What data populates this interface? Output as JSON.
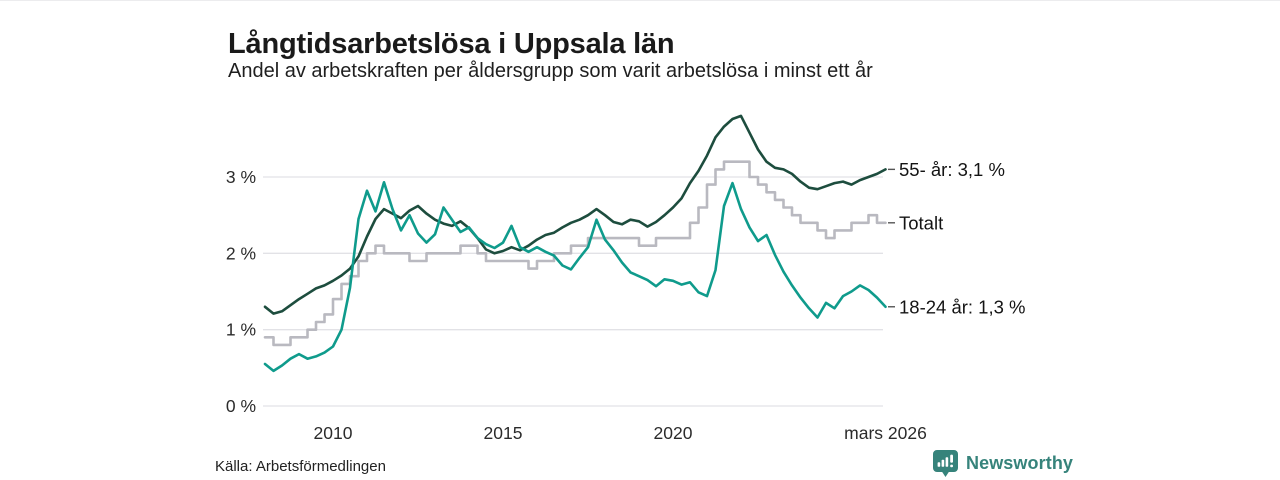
{
  "header": {
    "title": "Långtidsarbetslösa i Uppsala län",
    "subtitle": "Andel av arbetskraften per åldersgrupp som varit arbetslösa i minst ett år"
  },
  "footer": {
    "source": "Källa: Arbetsförmedlingen",
    "brand_name": "Newsworthy",
    "brand_icon": "newsworthy-bar-chart-bubble-icon",
    "brand_color": "#36837b"
  },
  "colors": {
    "age55_line": "#1d4d3e",
    "total_line": "#b9b9c0",
    "age1824_line": "#0f9b8c",
    "gridline": "#e2e2e6",
    "tick_text": "#2b2b2b",
    "legend_text": "#141414",
    "leader_dash": "#555555"
  },
  "chart_data": {
    "type": "line",
    "title": "Långtidsarbetslösa i Uppsala län",
    "subtitle": "Andel av arbetskraften per åldersgrupp som varit arbetslösa i minst ett år",
    "xlabel": "",
    "ylabel": "",
    "grid": "horizontal",
    "legend_position": "right-of-line-ends",
    "xrange": [
      2008.0,
      2026.25
    ],
    "yrange": [
      0,
      4.0
    ],
    "yticks": [
      {
        "value": 0,
        "label": "0 %"
      },
      {
        "value": 1,
        "label": "1 %"
      },
      {
        "value": 2,
        "label": "2 %"
      },
      {
        "value": 3,
        "label": "3 %"
      }
    ],
    "xticks": [
      {
        "value": 2010,
        "label": "2010"
      },
      {
        "value": 2015,
        "label": "2015"
      },
      {
        "value": 2020,
        "label": "2020"
      },
      {
        "value": 2026.25,
        "label": "mars 2026"
      }
    ],
    "x": [
      2008.0,
      2008.25,
      2008.5,
      2008.75,
      2009.0,
      2009.25,
      2009.5,
      2009.75,
      2010.0,
      2010.25,
      2010.5,
      2010.75,
      2011.0,
      2011.25,
      2011.5,
      2011.75,
      2012.0,
      2012.25,
      2012.5,
      2012.75,
      2013.0,
      2013.25,
      2013.5,
      2013.75,
      2014.0,
      2014.25,
      2014.5,
      2014.75,
      2015.0,
      2015.25,
      2015.5,
      2015.75,
      2016.0,
      2016.25,
      2016.5,
      2016.75,
      2017.0,
      2017.25,
      2017.5,
      2017.75,
      2018.0,
      2018.25,
      2018.5,
      2018.75,
      2019.0,
      2019.25,
      2019.5,
      2019.75,
      2020.0,
      2020.25,
      2020.5,
      2020.75,
      2021.0,
      2021.25,
      2021.5,
      2021.75,
      2022.0,
      2022.25,
      2022.5,
      2022.75,
      2023.0,
      2023.25,
      2023.5,
      2023.75,
      2024.0,
      2024.25,
      2024.5,
      2024.75,
      2025.0,
      2025.25,
      2025.5,
      2025.75,
      2026.0,
      2026.25
    ],
    "series": [
      {
        "name": "55- år",
        "legend_label": "55- år: 3,1 %",
        "latest_value": "3,1 %",
        "color": "#1d4d3e",
        "interpolation": "linear",
        "values": [
          1.3,
          1.21,
          1.24,
          1.32,
          1.4,
          1.47,
          1.54,
          1.58,
          1.64,
          1.71,
          1.8,
          1.96,
          2.22,
          2.45,
          2.58,
          2.52,
          2.46,
          2.56,
          2.62,
          2.52,
          2.44,
          2.39,
          2.36,
          2.42,
          2.33,
          2.2,
          2.05,
          2.0,
          2.03,
          2.08,
          2.04,
          2.1,
          2.18,
          2.24,
          2.27,
          2.34,
          2.4,
          2.44,
          2.5,
          2.58,
          2.5,
          2.41,
          2.38,
          2.44,
          2.42,
          2.35,
          2.41,
          2.5,
          2.6,
          2.72,
          2.92,
          3.08,
          3.28,
          3.52,
          3.66,
          3.76,
          3.8,
          3.58,
          3.36,
          3.2,
          3.12,
          3.1,
          3.04,
          2.94,
          2.86,
          2.84,
          2.88,
          2.92,
          2.94,
          2.9,
          2.96,
          3.0,
          3.04,
          3.1
        ]
      },
      {
        "name": "Totalt",
        "legend_label": "Totalt",
        "latest_value": "",
        "color": "#b9b9c0",
        "interpolation": "step",
        "values": [
          0.9,
          0.8,
          0.8,
          0.9,
          0.9,
          1.0,
          1.1,
          1.2,
          1.4,
          1.6,
          1.7,
          1.9,
          2.0,
          2.1,
          2.0,
          2.0,
          2.0,
          1.9,
          1.9,
          2.0,
          2.0,
          2.0,
          2.0,
          2.1,
          2.1,
          2.0,
          1.9,
          1.9,
          1.9,
          1.9,
          1.9,
          1.8,
          1.9,
          1.9,
          2.0,
          2.0,
          2.1,
          2.1,
          2.2,
          2.2,
          2.2,
          2.2,
          2.2,
          2.2,
          2.1,
          2.1,
          2.2,
          2.2,
          2.2,
          2.2,
          2.4,
          2.6,
          2.9,
          3.1,
          3.2,
          3.2,
          3.2,
          3.0,
          2.9,
          2.8,
          2.7,
          2.6,
          2.5,
          2.4,
          2.4,
          2.3,
          2.2,
          2.3,
          2.3,
          2.4,
          2.4,
          2.5,
          2.4,
          2.4
        ]
      },
      {
        "name": "18-24 år",
        "legend_label": "18-24 år: 1,3 %",
        "latest_value": "1,3 %",
        "color": "#0f9b8c",
        "interpolation": "linear",
        "values": [
          0.55,
          0.46,
          0.53,
          0.62,
          0.68,
          0.62,
          0.65,
          0.7,
          0.78,
          1.0,
          1.55,
          2.45,
          2.82,
          2.55,
          2.93,
          2.58,
          2.3,
          2.5,
          2.26,
          2.14,
          2.25,
          2.6,
          2.44,
          2.28,
          2.34,
          2.2,
          2.12,
          2.07,
          2.14,
          2.36,
          2.08,
          2.02,
          2.08,
          2.02,
          1.97,
          1.84,
          1.79,
          1.94,
          2.08,
          2.44,
          2.18,
          2.04,
          1.88,
          1.75,
          1.7,
          1.65,
          1.57,
          1.66,
          1.64,
          1.59,
          1.62,
          1.49,
          1.44,
          1.78,
          2.62,
          2.92,
          2.58,
          2.34,
          2.16,
          2.24,
          1.98,
          1.76,
          1.58,
          1.42,
          1.28,
          1.16,
          1.35,
          1.28,
          1.44,
          1.5,
          1.58,
          1.52,
          1.42,
          1.3
        ]
      }
    ]
  }
}
